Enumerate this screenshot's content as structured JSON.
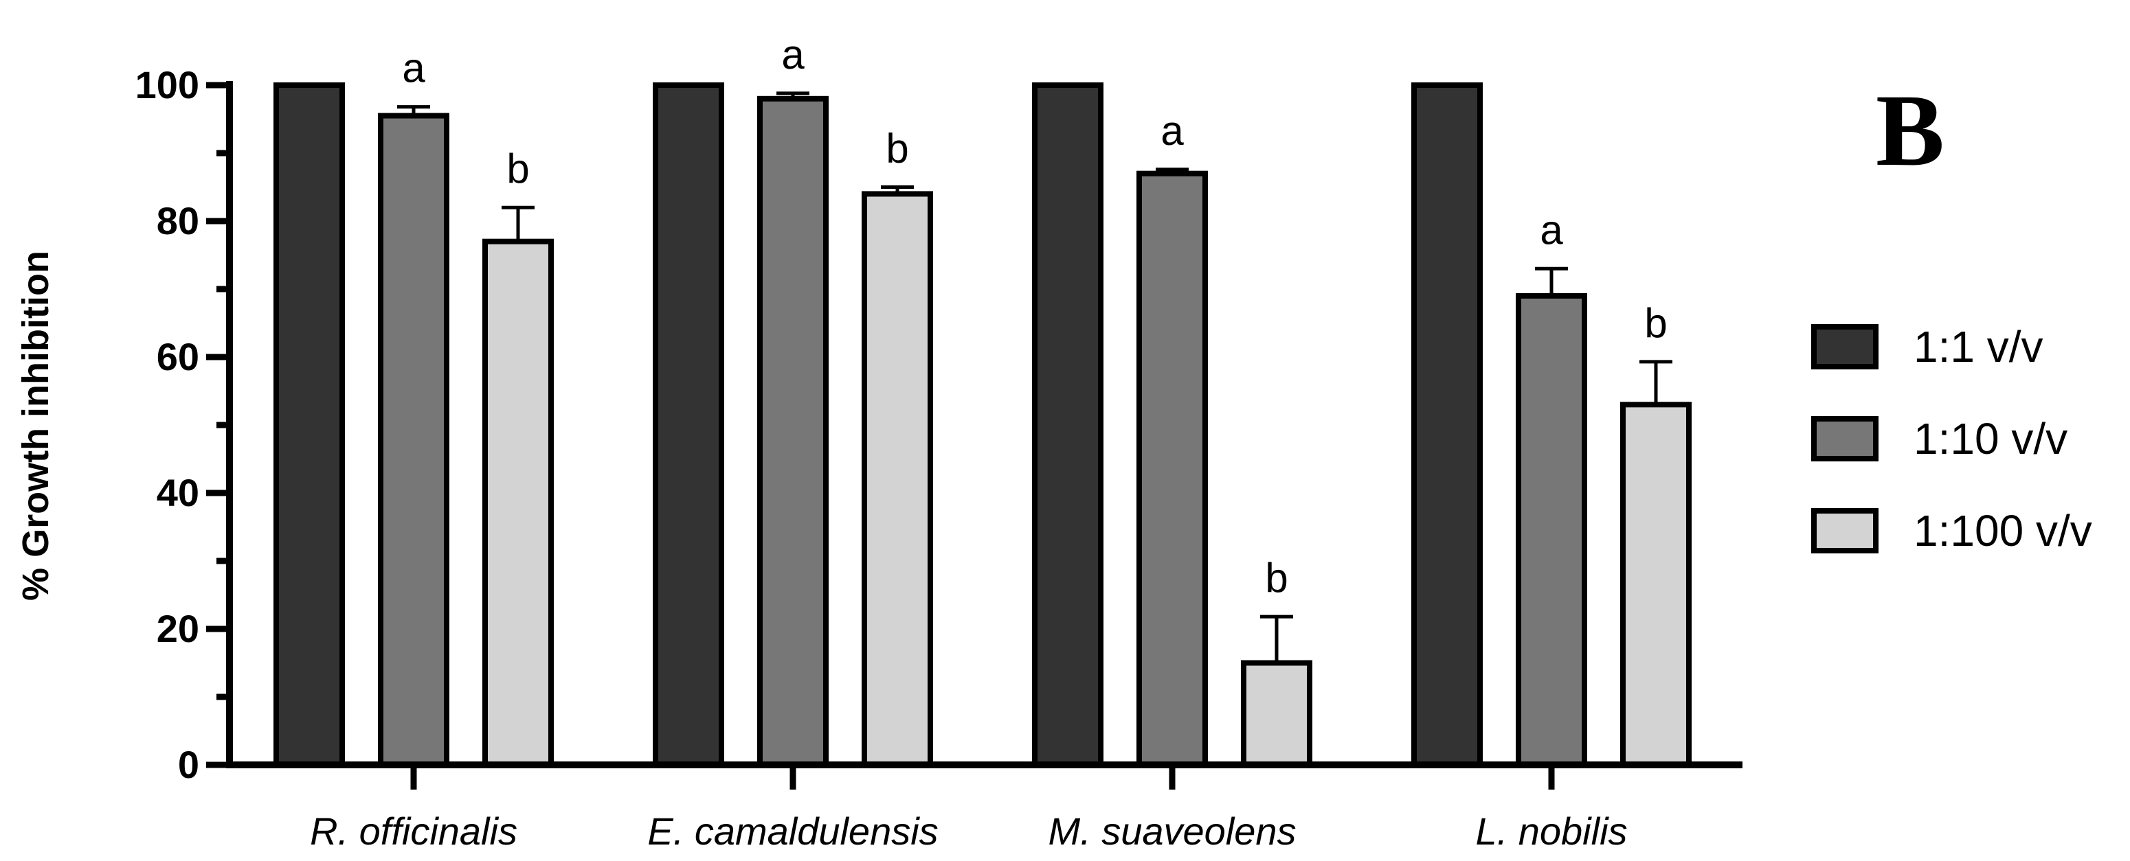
{
  "panel_label": "B",
  "chart_data": {
    "type": "bar",
    "title": "",
    "xlabel": "",
    "ylabel": "% Growth inhibition",
    "ylim": [
      0,
      100
    ],
    "yticks": [
      "0",
      "20",
      "40",
      "60",
      "80",
      "100"
    ],
    "categories": [
      "R. officinalis",
      "E. camaldulensis",
      "M. suaveolens",
      "L. nobilis"
    ],
    "series": [
      {
        "name": "1:1 v/v",
        "color": "#333333",
        "values": [
          100,
          100,
          100,
          100
        ],
        "errors": [
          0,
          0,
          0,
          0
        ],
        "letters": [
          "",
          "",
          "",
          ""
        ]
      },
      {
        "name": "1:10 v/v",
        "color": "#777777",
        "values": [
          95.5,
          98,
          87,
          69
        ],
        "errors": [
          1.3,
          0.8,
          0.6,
          4
        ],
        "letters": [
          "a",
          "a",
          "a",
          "a"
        ]
      },
      {
        "name": "1:100 v/v",
        "color": "#d3d3d3",
        "values": [
          77,
          84,
          15,
          53
        ],
        "errors": [
          5,
          1,
          6.8,
          6.3
        ],
        "letters": [
          "b",
          "b",
          "b",
          "b"
        ]
      }
    ],
    "legend_position": "right"
  }
}
